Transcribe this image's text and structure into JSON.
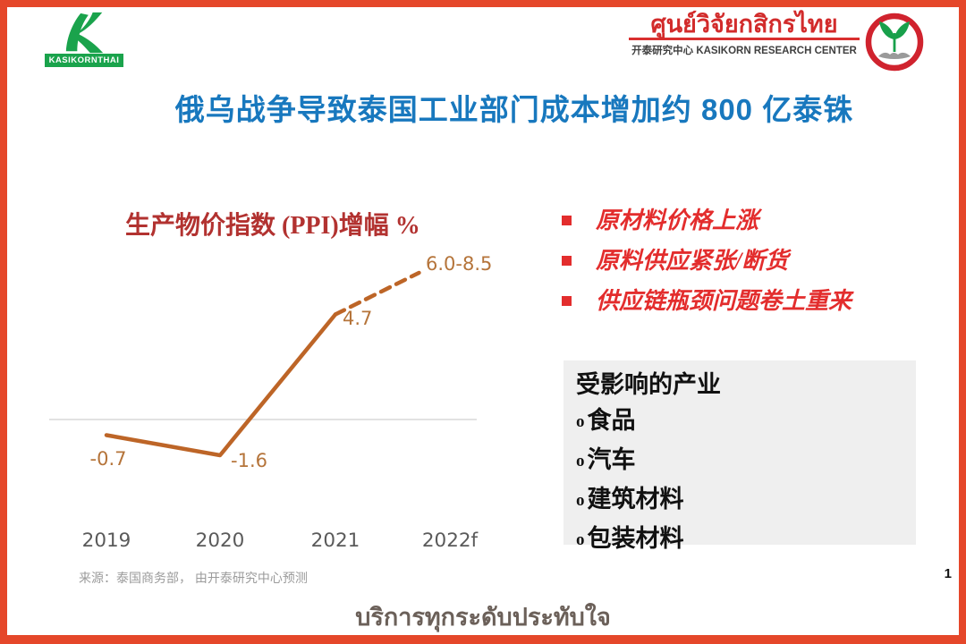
{
  "page": {
    "background": "#ffffff",
    "border_color": "#e5472a"
  },
  "header": {
    "brand": {
      "name": "KASIKORNTHAI",
      "green": "#1aa34c"
    },
    "research_center": {
      "thai_name": "ศูนย์วิจัยกสิกรไทย",
      "subtitle": "开泰研究中心 KASIKORN RESEARCH CENTER",
      "red": "#d22b2b"
    }
  },
  "title": {
    "text": "俄乌战争导致泰国工业部门成本增加约 800 亿泰铢",
    "color": "#1878be"
  },
  "chart_data": {
    "type": "line",
    "title": "生产物价指数 (PPI)增幅 %",
    "title_color": "#b23230",
    "categories": [
      "2019",
      "2020",
      "2021",
      "2022f"
    ],
    "values": [
      -0.7,
      -1.6,
      4.7,
      null
    ],
    "forecast_range": [
      6.0,
      8.5
    ],
    "point_labels": [
      "-0.7",
      "-1.6",
      "4.7",
      "6.0-8.5"
    ],
    "forecast_start_index": 2,
    "line_color": "#bd6527",
    "point_label_color": "#b5743a",
    "axis_label_color": "#5a5a5a",
    "zero_line_color": "#d9d9d9",
    "xlabel": "",
    "ylabel": "",
    "grid": false,
    "legend": "none"
  },
  "key_points": {
    "color": "#e32d2d",
    "items": [
      "原材料价格上涨",
      "原料供应紧张/断货",
      "供应链瓶颈问题卷土重来"
    ]
  },
  "affected_industries": {
    "title": "受影响的产业",
    "bullet_char": "o",
    "items": [
      "食品",
      "汽车",
      "建筑材料",
      "包装材料"
    ],
    "background": "#efefef"
  },
  "footer": {
    "source": "来源：泰国商务部， 由开泰研究中心预测",
    "page_number": "1",
    "slogan": "บริการทุกระดับประทับใจ",
    "slogan_color": "#6b6059"
  }
}
